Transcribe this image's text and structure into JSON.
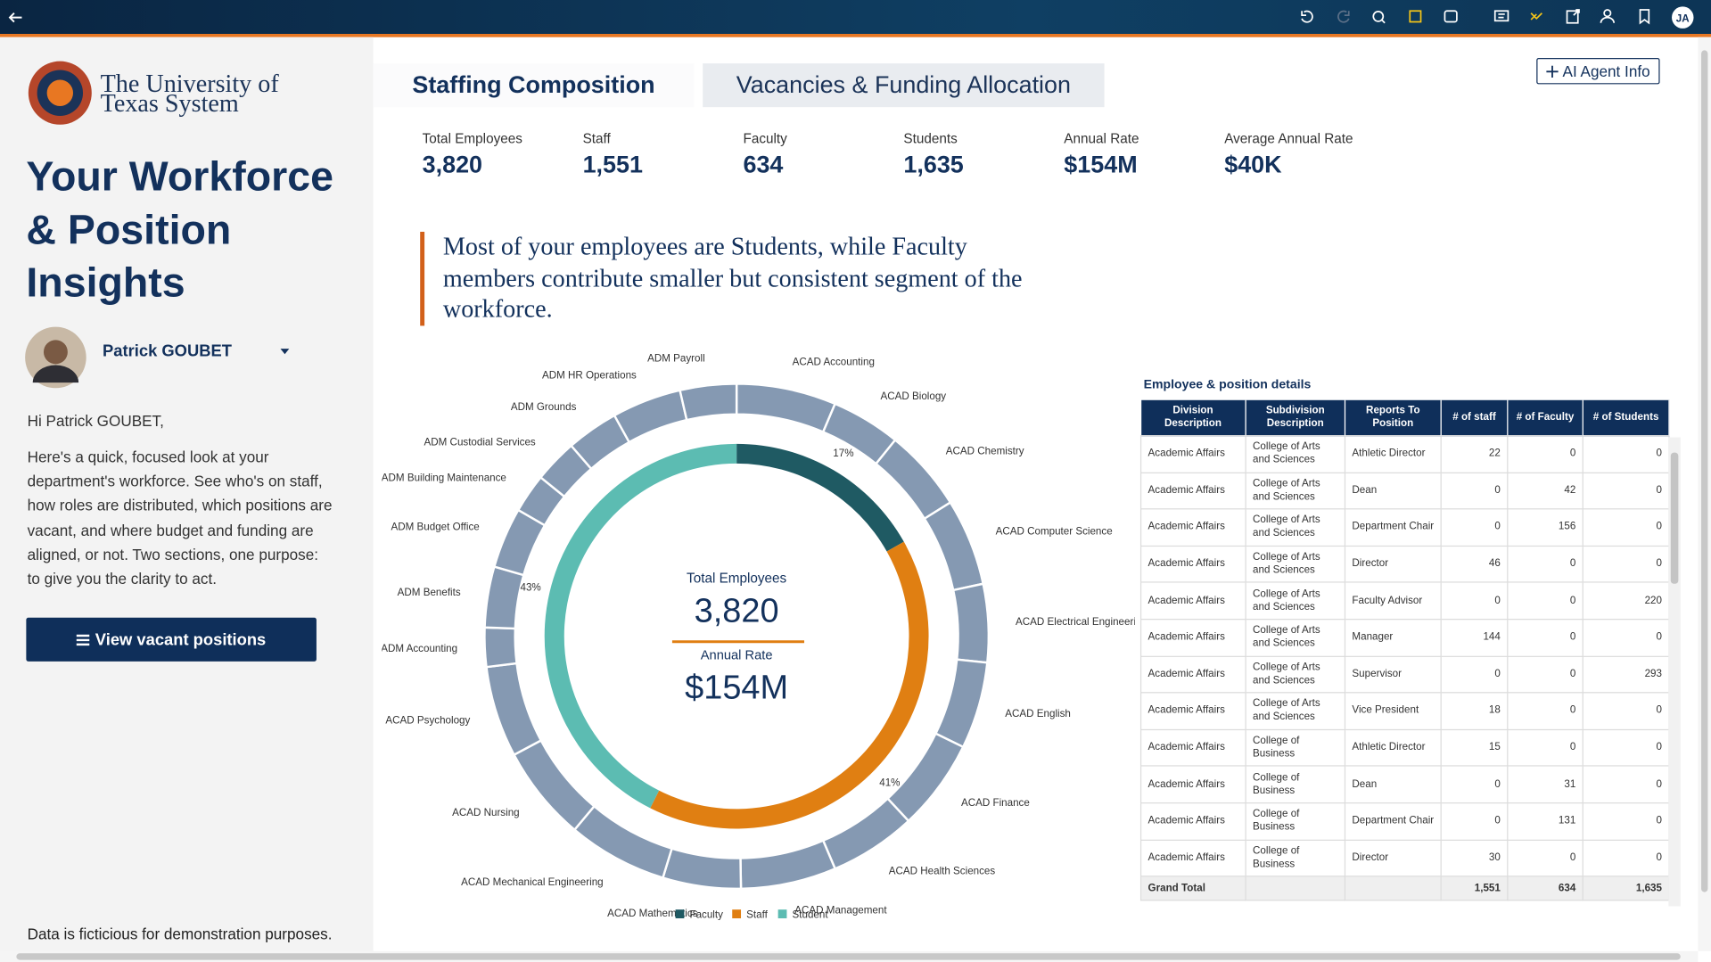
{
  "toolbar": {
    "avatar": "JA"
  },
  "sidebar": {
    "logo": [
      "The University of",
      "Texas System"
    ],
    "title": [
      "Your Workforce",
      "& Position",
      "Insights"
    ],
    "user": "Patrick GOUBET",
    "greeting": "Hi Patrick GOUBET,",
    "intro": "Here's a quick, focused look at your department's workforce. See who's on staff, how roles are distributed, which positions are vacant, and where budget and funding are aligned, or not. Two sections, one purpose: to give you the clarity to act.",
    "button": "View vacant positions",
    "footer": "Data is ficticious for demonstration purposes."
  },
  "tabs": [
    "Staffing Composition",
    "Vacancies & Funding Allocation"
  ],
  "agent_button": "AI Agent Info",
  "kpis": [
    {
      "label": "Total Employees",
      "value": "3,820"
    },
    {
      "label": "Staff",
      "value": "1,551"
    },
    {
      "label": "Faculty",
      "value": "634"
    },
    {
      "label": "Students",
      "value": "1,635"
    },
    {
      "label": "Annual Rate",
      "value": "$154M"
    },
    {
      "label": "Average Annual Rate",
      "value": "$40K"
    }
  ],
  "insight": "Most of your employees are Students, while Faculty members contribute smaller but consistent segment of the workforce.",
  "chart_data": {
    "type": "donut",
    "categories": [
      "Faculty",
      "Staff",
      "Student"
    ],
    "values": [
      17,
      41,
      43
    ],
    "value_labels": [
      "17%",
      "41%",
      "43%"
    ],
    "colors": [
      "#1f5a63",
      "#e07f12",
      "#5cbcb2"
    ],
    "legend": "bottom",
    "center": [
      {
        "label": "Total Employees",
        "value": "3,820"
      },
      {
        "label": "Annual Rate",
        "value": "$154M"
      }
    ],
    "outer": {
      "categories": [
        "ACAD Accounting",
        "ACAD Biology",
        "ACAD Chemistry",
        "ACAD Computer Science",
        "ACAD Electrical Engineering",
        "ACAD English",
        "ACAD Finance",
        "ACAD Health Sciences",
        "ACAD Management",
        "ACAD Mathematics",
        "ACAD Mechanical Engineering",
        "ACAD Nursing",
        "ACAD Psychology",
        "ADM Accounting",
        "ADM Benefits",
        "ADM Budget Office",
        "ADM Building Maintenance",
        "ADM Custodial Services",
        "ADM Grounds",
        "ADM HR Operations",
        "ADM Payroll"
      ],
      "values": [
        23,
        16,
        19,
        20,
        18,
        20,
        21,
        20,
        22,
        18,
        23,
        22,
        21,
        9,
        14,
        14,
        9,
        10,
        12,
        16,
        13
      ],
      "color": "#8599b2"
    }
  },
  "table": {
    "title": "Employee & position details",
    "columns": [
      "Division Description",
      "Subdivision Description",
      "Reports To Position",
      "# of staff",
      "# of Faculty",
      "# of Students"
    ],
    "rows": [
      [
        "Academic Affairs",
        "College of Arts and Sciences",
        "Athletic Director",
        "22",
        "0",
        "0"
      ],
      [
        "Academic Affairs",
        "College of Arts and Sciences",
        "Dean",
        "0",
        "42",
        "0"
      ],
      [
        "Academic Affairs",
        "College of Arts and Sciences",
        "Department Chair",
        "0",
        "156",
        "0"
      ],
      [
        "Academic Affairs",
        "College of Arts and Sciences",
        "Director",
        "46",
        "0",
        "0"
      ],
      [
        "Academic Affairs",
        "College of Arts and Sciences",
        "Faculty Advisor",
        "0",
        "0",
        "220"
      ],
      [
        "Academic Affairs",
        "College of Arts and Sciences",
        "Manager",
        "144",
        "0",
        "0"
      ],
      [
        "Academic Affairs",
        "College of Arts and Sciences",
        "Supervisor",
        "0",
        "0",
        "293"
      ],
      [
        "Academic Affairs",
        "College of Arts and Sciences",
        "Vice President",
        "18",
        "0",
        "0"
      ],
      [
        "Academic Affairs",
        "College of Business",
        "Athletic Director",
        "15",
        "0",
        "0"
      ],
      [
        "Academic Affairs",
        "College of Business",
        "Dean",
        "0",
        "31",
        "0"
      ],
      [
        "Academic Affairs",
        "College of Business",
        "Department Chair",
        "0",
        "131",
        "0"
      ],
      [
        "Academic Affairs",
        "College of Business",
        "Director",
        "30",
        "0",
        "0"
      ]
    ],
    "total": {
      "label": "Grand Total",
      "values": [
        "1,551",
        "634",
        "1,635"
      ]
    }
  }
}
